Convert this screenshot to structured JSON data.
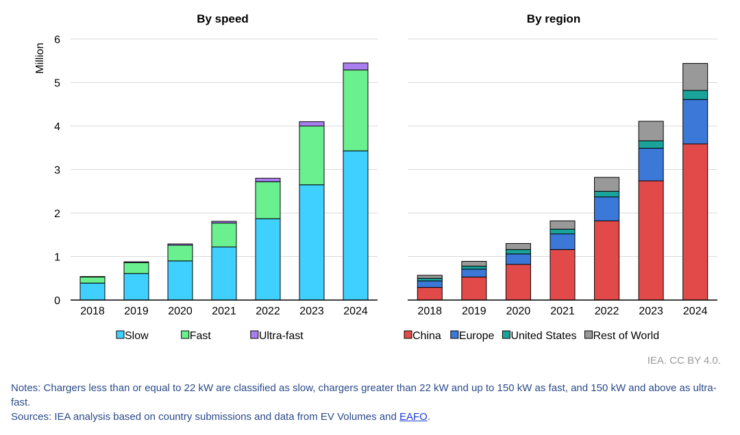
{
  "chart_data": [
    {
      "type": "bar",
      "stacked": true,
      "title": "By speed",
      "ylabel": "Million",
      "ylim": [
        0,
        6
      ],
      "yticks": [
        "0",
        "1",
        "2",
        "3",
        "4",
        "5",
        "6"
      ],
      "grid": true,
      "legend_position": "bottom",
      "categories": [
        "2018",
        "2019",
        "2020",
        "2021",
        "2022",
        "2023",
        "2024"
      ],
      "series": [
        {
          "name": "Slow",
          "color": "#3fd0ff",
          "values": [
            0.39,
            0.61,
            0.9,
            1.22,
            1.87,
            2.65,
            3.43
          ]
        },
        {
          "name": "Fast",
          "color": "#6bf08f",
          "values": [
            0.14,
            0.25,
            0.36,
            0.55,
            0.85,
            1.35,
            1.86
          ]
        },
        {
          "name": "Ultra-fast",
          "color": "#a97ff0",
          "values": [
            0.01,
            0.02,
            0.03,
            0.04,
            0.08,
            0.1,
            0.16
          ]
        }
      ]
    },
    {
      "type": "bar",
      "stacked": true,
      "title": "By region",
      "ylim": [
        0,
        6
      ],
      "grid": true,
      "legend_position": "bottom",
      "categories": [
        "2018",
        "2019",
        "2020",
        "2021",
        "2022",
        "2023",
        "2024"
      ],
      "series": [
        {
          "name": "China",
          "color": "#e24a4a",
          "values": [
            0.29,
            0.53,
            0.82,
            1.16,
            1.82,
            2.74,
            3.59
          ]
        },
        {
          "name": "Europe",
          "color": "#3c78d8",
          "values": [
            0.15,
            0.18,
            0.24,
            0.36,
            0.55,
            0.75,
            1.02
          ]
        },
        {
          "name": "United States",
          "color": "#1aa39a",
          "values": [
            0.06,
            0.07,
            0.1,
            0.11,
            0.13,
            0.17,
            0.21
          ]
        },
        {
          "name": "Rest of World",
          "color": "#999999",
          "values": [
            0.07,
            0.11,
            0.14,
            0.19,
            0.32,
            0.45,
            0.62
          ]
        }
      ]
    }
  ],
  "credit": "IEA. CC BY 4.0.",
  "notes": {
    "line1": "Notes: Chargers less than or equal to 22 kW are classified as slow, chargers greater than 22 kW and up to 150 kW as fast, and 150 kW and above as ultra-fast.",
    "sources_prefix": "Sources: IEA analysis based on country submissions and data from EV Volumes and ",
    "sources_link": "EAFO",
    "sources_suffix": "."
  }
}
